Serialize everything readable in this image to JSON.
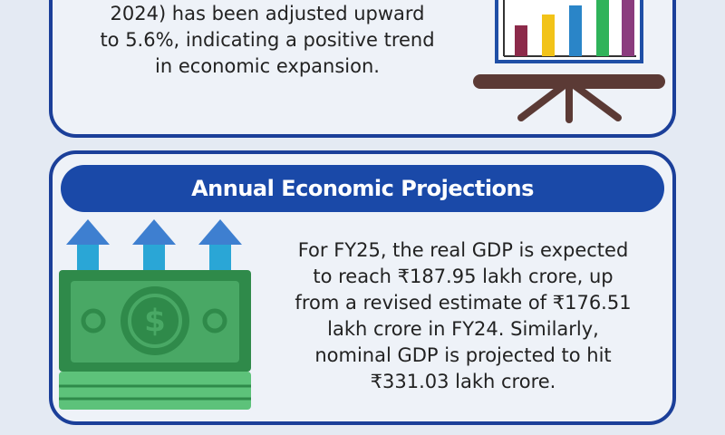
{
  "top_section": {
    "text_lines": [
      "2024) has been adjusted upward",
      "to 5.6%, indicating a positive trend",
      "in economic expansion."
    ]
  },
  "bottom_section": {
    "title": "Annual Economic Projections",
    "text_lines": [
      "For FY25, the real GDP is expected",
      "to reach ₹187.95 lakh crore, up",
      "from a revised estimate of ₹176.51",
      "lakh crore in FY24. Similarly,",
      "nominal GDP is projected to hit",
      "₹331.03 lakh crore."
    ]
  }
}
